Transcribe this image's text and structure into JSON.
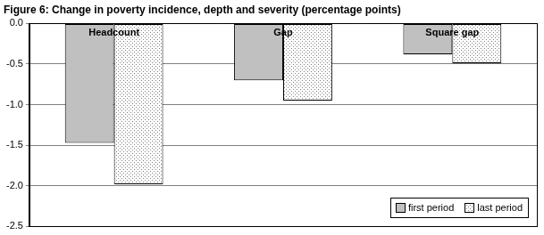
{
  "chart_data": {
    "type": "bar",
    "title": "Figure 6: Change in poverty incidence, depth and severity (percentage points)",
    "categories": [
      "Headcount",
      "Gap",
      "Square gap"
    ],
    "series": [
      {
        "name": "first period",
        "color": "#c0c0c0",
        "values": [
          -1.47,
          -0.7,
          -0.38
        ]
      },
      {
        "name": "last period",
        "color": "#808080",
        "line_style": "dotted",
        "values": [
          -1.98,
          -0.95,
          -0.49
        ]
      }
    ],
    "ylim": [
      -2.5,
      0.0
    ],
    "yticks": [
      -2.5,
      {
        "value": -2.0,
        "label": "-2.0"
      },
      -1.5,
      {
        "value": -1.0,
        "label": "-1.0"
      },
      -0.5,
      {
        "value": 0.0,
        "label": "0.0"
      }
    ],
    "grid": true,
    "legend": "lower right"
  }
}
